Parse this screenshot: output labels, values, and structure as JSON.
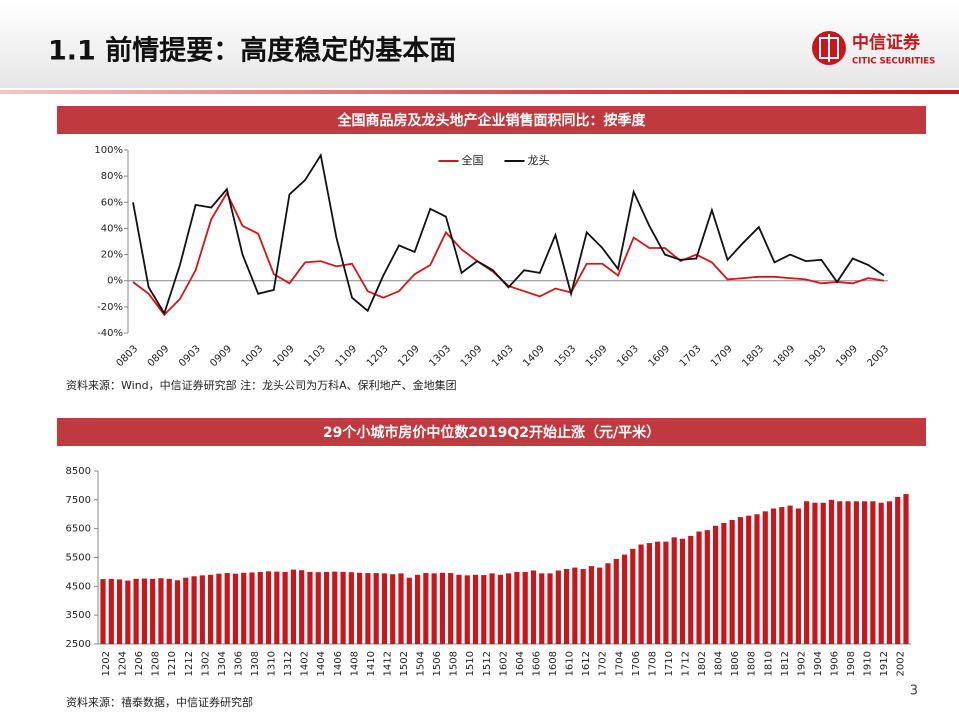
{
  "header": {
    "title": "1.1 前情提要：高度稳定的基本面",
    "logo_text": "中信证券",
    "logo_subtext": "CITIC SECURITIES"
  },
  "page_number": 3,
  "chart_data": [
    {
      "type": "line",
      "title": "全国商品房及龙头地产企业销售面积同比：按季度",
      "note": "资料来源：Wind，中信证券研究部 注：龙头公司为万科A、保利地产、金地集团",
      "categories": [
        "0803",
        null,
        "0809",
        null,
        "0903",
        null,
        "0909",
        null,
        "1003",
        null,
        "1009",
        null,
        "1103",
        null,
        "1109",
        null,
        "1203",
        null,
        "1209",
        null,
        "1303",
        null,
        "1309",
        null,
        "1403",
        null,
        "1409",
        null,
        "1503",
        null,
        "1509",
        null,
        "1603",
        null,
        "1609",
        null,
        "1703",
        null,
        "1709",
        null,
        "1803",
        null,
        "1809",
        null,
        "1903",
        null,
        "1909",
        null,
        "2003"
      ],
      "series": [
        {
          "name": "全国",
          "color": "#d7141a",
          "values": [
            -1,
            -10,
            -26,
            -14,
            8,
            47,
            67,
            42,
            36,
            5,
            -2,
            14,
            15,
            11,
            13,
            -8,
            -13,
            -8,
            5,
            12,
            37,
            24,
            15,
            7,
            -4,
            -8,
            -12,
            -6,
            -9,
            13,
            13,
            4,
            33,
            25,
            25,
            15,
            20,
            14,
            1,
            2,
            3,
            3,
            2,
            1,
            -2,
            -1,
            -2,
            2,
            0
          ]
        },
        {
          "name": "龙头",
          "color": "#111111",
          "values": [
            60,
            -5,
            -25,
            12,
            58,
            56,
            70,
            20,
            -10,
            -7,
            66,
            77,
            96,
            33,
            -13,
            -23,
            4,
            27,
            22,
            55,
            49,
            6,
            15,
            8,
            -5,
            8,
            6,
            35,
            -10,
            37,
            25,
            9,
            68,
            42,
            20,
            16,
            17,
            54,
            16,
            29,
            41,
            14,
            20,
            15,
            16,
            -1,
            17,
            12,
            4
          ]
        }
      ],
      "ylim": [
        -40,
        100
      ],
      "yticks": [
        {
          "value": -40,
          "label": "-40%"
        },
        {
          "value": -20,
          "label": "-20%"
        },
        {
          "value": 0,
          "label": "0%"
        },
        {
          "value": 20,
          "label": "20%"
        },
        {
          "value": 40,
          "label": "40%"
        },
        {
          "value": 60,
          "label": "60%"
        },
        {
          "value": 80,
          "label": "80%"
        },
        {
          "value": 100,
          "label": "100%"
        }
      ],
      "grid": false,
      "legend": "upper center"
    },
    {
      "type": "bar",
      "title": "29个小城市房价中位数2019Q2开始止涨（元/平米）",
      "note": "资料来源：禧泰数据，中信证券研究部",
      "categories": [
        "1202",
        null,
        "1204",
        null,
        "1206",
        null,
        "1208",
        null,
        "1210",
        null,
        "1212",
        null,
        "1302",
        null,
        "1304",
        null,
        "1306",
        null,
        "1308",
        null,
        "1310",
        null,
        "1312",
        null,
        "1402",
        null,
        "1404",
        null,
        "1406",
        null,
        "1408",
        null,
        "1410",
        null,
        "1412",
        null,
        "1502",
        null,
        "1504",
        null,
        "1506",
        null,
        "1508",
        null,
        "1510",
        null,
        "1512",
        null,
        "1602",
        null,
        "1604",
        null,
        "1606",
        null,
        "1608",
        null,
        "1610",
        null,
        "1612",
        null,
        "1702",
        null,
        "1704",
        null,
        "1706",
        null,
        "1708",
        null,
        "1710",
        null,
        "1712",
        null,
        "1802",
        null,
        "1804",
        null,
        "1806",
        null,
        "1808",
        null,
        "1810",
        null,
        "1812",
        null,
        "1902",
        null,
        "1904",
        null,
        "1906",
        null,
        "1908",
        null,
        "1910",
        null,
        "1912",
        null,
        "2002",
        null
      ],
      "values": [
        4750,
        4760,
        4740,
        4700,
        4760,
        4770,
        4760,
        4780,
        4760,
        4710,
        4800,
        4850,
        4880,
        4900,
        4940,
        4960,
        4940,
        4970,
        4980,
        5000,
        5020,
        5010,
        5000,
        5080,
        5060,
        5000,
        4990,
        5000,
        5010,
        5000,
        4990,
        4970,
        4960,
        4960,
        4950,
        4920,
        4950,
        4800,
        4900,
        4960,
        4950,
        4970,
        4960,
        4900,
        4880,
        4900,
        4890,
        4950,
        4900,
        4950,
        5000,
        5000,
        5050,
        4950,
        4950,
        5050,
        5100,
        5150,
        5100,
        5200,
        5150,
        5300,
        5450,
        5600,
        5800,
        5950,
        6000,
        6050,
        6050,
        6200,
        6150,
        6250,
        6400,
        6450,
        6600,
        6700,
        6800,
        6900,
        6950,
        7000,
        7100,
        7200,
        7250,
        7300,
        7200,
        7450,
        7400,
        7400,
        7500,
        7450,
        7450,
        7450,
        7450,
        7450,
        7400,
        7450,
        7600,
        7700
      ],
      "color": "#c8161d",
      "ylim": [
        2500,
        8500
      ],
      "yticks": [
        2500,
        3500,
        4500,
        5500,
        6500,
        7500,
        8500
      ],
      "grid": false
    }
  ]
}
